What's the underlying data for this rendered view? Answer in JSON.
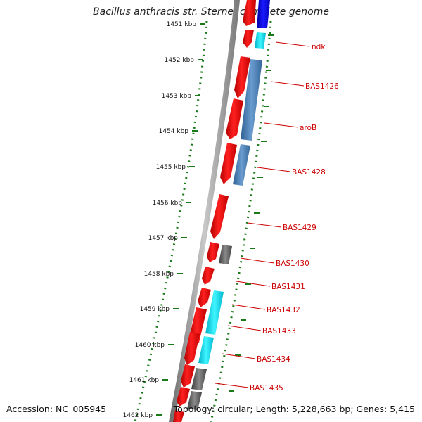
{
  "title": "Bacillus anthracis str. Sterne, complete genome",
  "footer": {
    "accession": "Accession: NC_005945",
    "info": "Topology: circular; Length: 5,228,663 bp; Genes: 5,415"
  },
  "scale": {
    "ticks": [
      "1451 kbp",
      "1452 kbp",
      "1453 kbp",
      "1454 kbp",
      "1455 kbp",
      "1456 kbp",
      "1457 kbp",
      "1458 kbp",
      "1459 kbp",
      "1460 kbp",
      "1461 kbp",
      "1462 kbp"
    ]
  },
  "genes": [
    "ndk",
    "BAS1426",
    "aroB",
    "BAS1428",
    "BAS1429",
    "BAS1430",
    "BAS1431",
    "BAS1432",
    "BAS1433",
    "BAS1434",
    "BAS1435"
  ],
  "colors": {
    "backbone": "#888888",
    "tick": "#1a7a1a",
    "label": "#cc0000",
    "cds": "#ff0000",
    "blue": "#0000ee",
    "cyan": "#00e5ff",
    "steel": "#4a7fb5",
    "gray": "#666666"
  }
}
